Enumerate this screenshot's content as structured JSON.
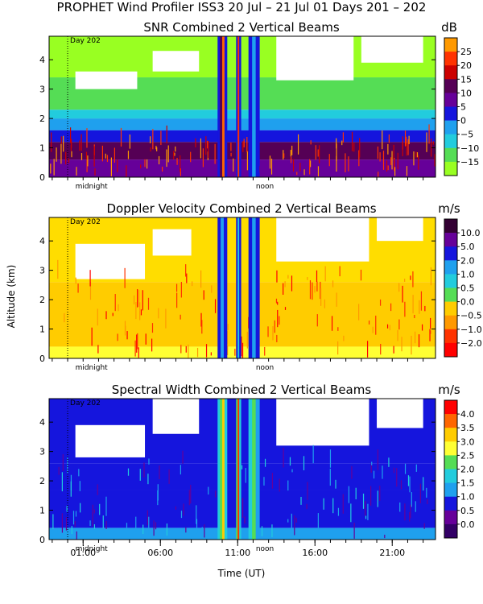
{
  "figure": {
    "title": "PROPHET Wind Profiler ISS3  20 Jul – 21 Jul 01 Days 201 – 202",
    "ylabel": "Altitude (km)",
    "xlabel": "Time (UT)",
    "x_ticks": [
      "01:00",
      "06:00",
      "11:00",
      "16:00",
      "21:00"
    ],
    "marker_labels": {
      "midnight": "midnight",
      "noon": "noon",
      "day": "Day 202"
    }
  },
  "chart_data": [
    {
      "type": "heatmap",
      "title": "SNR Combined 2 Vertical Beams",
      "unit": "dB",
      "ylim": [
        0,
        4.8
      ],
      "y_ticks": [
        "0",
        "1",
        "2",
        "3",
        "4"
      ],
      "colorbar": {
        "labels": [
          "25",
          "20",
          "15",
          "10",
          "5",
          "0",
          "−5",
          "−10",
          "−15"
        ],
        "colors": [
          "#ff9900",
          "#ff3300",
          "#cc0000",
          "#550055",
          "#660099",
          "#1515dd",
          "#1fa0ee",
          "#22ccdd",
          "#55dd55",
          "#99ff22"
        ]
      },
      "layers": [
        {
          "bottom": 0.0,
          "top": 0.6,
          "color": "#660099"
        },
        {
          "bottom": 0.6,
          "top": 1.2,
          "color": "#550055"
        },
        {
          "bottom": 1.2,
          "top": 1.6,
          "color": "#1515dd"
        },
        {
          "bottom": 1.6,
          "top": 2.0,
          "color": "#1fa0ee"
        },
        {
          "bottom": 2.0,
          "top": 2.3,
          "color": "#22ccdd"
        },
        {
          "bottom": 2.3,
          "top": 3.4,
          "color": "#55dd55"
        },
        {
          "bottom": 3.4,
          "top": 4.8,
          "color": "#99ff22"
        }
      ],
      "gaps": [
        {
          "t0": 0.5,
          "t1": 4.5,
          "bottom": 3.0,
          "top": 3.6
        },
        {
          "t0": 5.5,
          "t1": 8.5,
          "bottom": 3.6,
          "top": 4.3
        },
        {
          "t0": 13.5,
          "t1": 18.5,
          "bottom": 3.3,
          "top": 4.8
        },
        {
          "t0": 19.0,
          "t1": 23.0,
          "bottom": 3.9,
          "top": 4.8
        }
      ],
      "bands": [
        {
          "t0": 9.7,
          "t1": 10.3,
          "colors": [
            "#1515dd",
            "#550055",
            "#ff6600",
            "#1515dd"
          ]
        },
        {
          "t0": 10.9,
          "t1": 11.2,
          "colors": [
            "#1515dd",
            "#ff3300",
            "#1515dd"
          ]
        },
        {
          "t0": 11.7,
          "t1": 12.4,
          "colors": [
            "#1515dd",
            "#1fa0ee",
            "#1515dd"
          ]
        }
      ],
      "speckle_colors": [
        "#ff3300",
        "#ff9900",
        "#cc0000"
      ],
      "speckle_range": [
        0.0,
        1.2
      ]
    },
    {
      "type": "heatmap",
      "title": "Doppler Velocity Combined 2 Vertical Beams",
      "unit": "m/s",
      "ylim": [
        0,
        4.8
      ],
      "y_ticks": [
        "0",
        "1",
        "2",
        "3",
        "4"
      ],
      "colorbar": {
        "labels": [
          "10.0",
          "5.0",
          "2.0",
          "1.0",
          "0.5",
          "0.0",
          "−0.5",
          "−1.0",
          "−2.0"
        ],
        "colors": [
          "#330033",
          "#660099",
          "#1515dd",
          "#1fa0ee",
          "#22ccdd",
          "#55dd55",
          "#ffcc00",
          "#ff9900",
          "#ff3300",
          "#ff0000"
        ]
      },
      "layers": [
        {
          "bottom": 0.0,
          "top": 0.4,
          "color": "#ffff33"
        },
        {
          "bottom": 0.4,
          "top": 2.6,
          "color": "#ffcc00"
        },
        {
          "bottom": 2.6,
          "top": 4.8,
          "color": "#ffdd00"
        }
      ],
      "gaps": [
        {
          "t0": 0.5,
          "t1": 5.0,
          "bottom": 2.7,
          "top": 3.9
        },
        {
          "t0": 5.5,
          "t1": 8.0,
          "bottom": 3.5,
          "top": 4.4
        },
        {
          "t0": 13.5,
          "t1": 19.5,
          "bottom": 3.3,
          "top": 4.8
        },
        {
          "t0": 20.0,
          "t1": 23.0,
          "bottom": 4.0,
          "top": 4.8
        }
      ],
      "bands": [
        {
          "t0": 9.7,
          "t1": 10.3,
          "colors": [
            "#1515dd",
            "#1fa0ee",
            "#1515dd"
          ]
        },
        {
          "t0": 10.9,
          "t1": 11.2,
          "colors": [
            "#1515dd",
            "#22ccdd",
            "#1515dd"
          ]
        },
        {
          "t0": 11.7,
          "t1": 12.4,
          "colors": [
            "#1515dd",
            "#1fa0ee",
            "#1515dd"
          ]
        }
      ],
      "speckle_colors": [
        "#ff3300",
        "#ff0000",
        "#ff9900"
      ],
      "speckle_range": [
        0.0,
        2.8
      ]
    },
    {
      "type": "heatmap",
      "title": "Spectral Width Combined 2 Vertical Beams",
      "unit": "m/s",
      "ylim": [
        0,
        4.8
      ],
      "y_ticks": [
        "0",
        "1",
        "2",
        "3",
        "4"
      ],
      "colorbar": {
        "labels": [
          "4.0",
          "3.5",
          "3.0",
          "2.5",
          "2.0",
          "1.5",
          "1.0",
          "0.5",
          "0.0"
        ],
        "colors": [
          "#ff0000",
          "#ff6600",
          "#ffcc00",
          "#ffff33",
          "#55dd55",
          "#22ccdd",
          "#1fa0ee",
          "#1515dd",
          "#660099",
          "#330066"
        ]
      },
      "layers": [
        {
          "bottom": 0.0,
          "top": 0.4,
          "color": "#1fa0ee"
        },
        {
          "bottom": 0.4,
          "top": 1.7,
          "color": "#1515dd"
        },
        {
          "bottom": 1.7,
          "top": 2.6,
          "color": "#1515dd"
        },
        {
          "bottom": 2.6,
          "top": 4.8,
          "color": "#1515dd"
        }
      ],
      "gaps": [
        {
          "t0": 0.5,
          "t1": 5.0,
          "bottom": 2.8,
          "top": 3.9
        },
        {
          "t0": 5.5,
          "t1": 8.5,
          "bottom": 3.6,
          "top": 4.8
        },
        {
          "t0": 13.5,
          "t1": 19.5,
          "bottom": 3.2,
          "top": 4.8
        },
        {
          "t0": 20.0,
          "t1": 23.0,
          "bottom": 3.8,
          "top": 4.8
        }
      ],
      "bands": [
        {
          "t0": 9.7,
          "t1": 10.3,
          "colors": [
            "#22ccdd",
            "#55dd55",
            "#ffcc00",
            "#22ccdd"
          ]
        },
        {
          "t0": 10.9,
          "t1": 11.2,
          "colors": [
            "#55dd55",
            "#ff3300",
            "#22ccdd"
          ]
        },
        {
          "t0": 11.7,
          "t1": 12.4,
          "colors": [
            "#22ccdd",
            "#55dd55",
            "#1fa0ee"
          ]
        }
      ],
      "speckle_colors": [
        "#22ccdd",
        "#1fa0ee",
        "#660099"
      ],
      "speckle_range": [
        0.0,
        2.6
      ]
    }
  ]
}
